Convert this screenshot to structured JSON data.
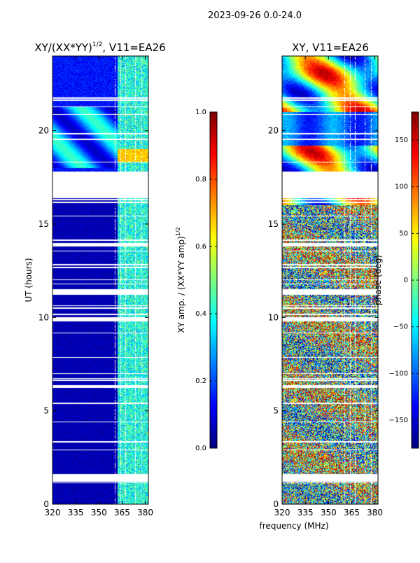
{
  "suptitle": "2023-09-26 0.0-24.0",
  "colors": {
    "jet": [
      "#00007f",
      "#0000ff",
      "#007fff",
      "#00ffff",
      "#7fff7f",
      "#ffff00",
      "#ff7f00",
      "#ff0000",
      "#7f0000"
    ],
    "frame": "#000000",
    "flag": "#ffffff"
  },
  "shared": {
    "xlabel": "frequency (MHz)",
    "xlim": [
      320,
      382
    ],
    "xticks": [
      320,
      335,
      350,
      365,
      380
    ],
    "ylim": [
      0,
      24
    ],
    "yticks": [
      0,
      5,
      10,
      15,
      20
    ]
  },
  "flagged_ut_hours": [
    [
      16.4,
      17.8
    ],
    [
      1.2,
      1.6
    ],
    [
      11.2,
      11.5
    ],
    [
      13.8,
      14.0
    ],
    [
      9.8,
      10.0
    ]
  ],
  "chart_data": [
    {
      "type": "heatmap",
      "title": "XY/(XX*YY)",
      "title_exp": "1/2",
      "title_suffix": ", V11=EA26",
      "ylabel": "UT (hours)",
      "colorbar_label": "XY amp. / (XX*YY amp)",
      "colorbar_label_exp": "1/2",
      "clim": [
        0.0,
        1.0
      ],
      "cticks": [
        "0.0",
        "0.2",
        "0.4",
        "0.6",
        "0.8",
        "1.0"
      ],
      "cmap": "jet",
      "pattern": "amplitude: mostly 0.0-0.2 below 362 MHz, 0.3-0.6 above 362 MHz; 0.4-0.6 band near 18-21 UT"
    },
    {
      "type": "heatmap",
      "title": "XY, V11=EA26",
      "ylabel": "",
      "colorbar_label": "phase (deg)",
      "clim": [
        -180,
        180
      ],
      "cticks": [
        "−150",
        "−100",
        "−50",
        "0",
        "50",
        "100",
        "150"
      ],
      "cmap": "jet",
      "pattern": "phase: noisy, -180 to 180 deg; coherent structure 16-24 UT"
    }
  ]
}
